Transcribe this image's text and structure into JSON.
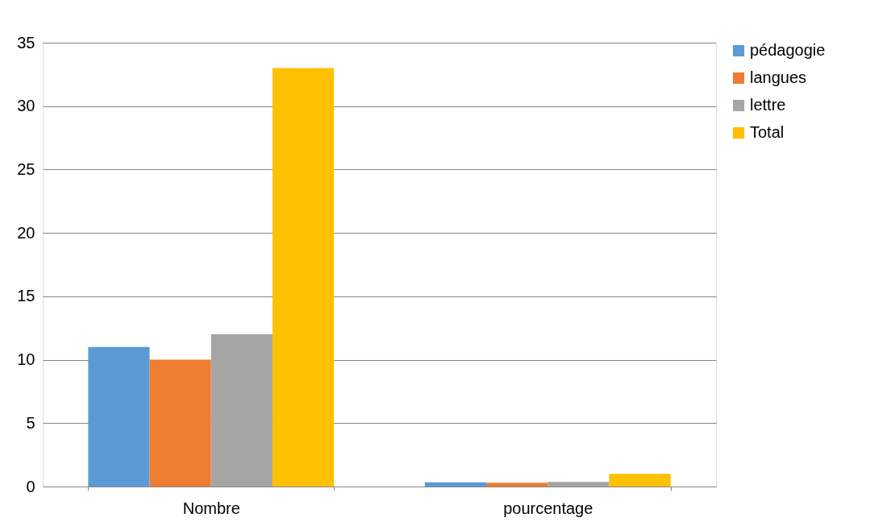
{
  "chart_data": {
    "type": "bar",
    "categories": [
      "Nombre",
      "pourcentage"
    ],
    "series": [
      {
        "name": "pédagogie",
        "color": "#5b9bd5",
        "values": [
          11,
          0.33
        ]
      },
      {
        "name": "langues",
        "color": "#ed7d31",
        "values": [
          10,
          0.3
        ]
      },
      {
        "name": "lettre",
        "color": "#a5a5a5",
        "values": [
          12,
          0.36
        ]
      },
      {
        "name": "Total",
        "color": "#ffc000",
        "values": [
          33,
          1
        ]
      }
    ],
    "ylim": [
      0,
      35
    ],
    "yticks": [
      0,
      5,
      10,
      15,
      20,
      25,
      30,
      35
    ],
    "grid": "y",
    "legend": "right"
  }
}
